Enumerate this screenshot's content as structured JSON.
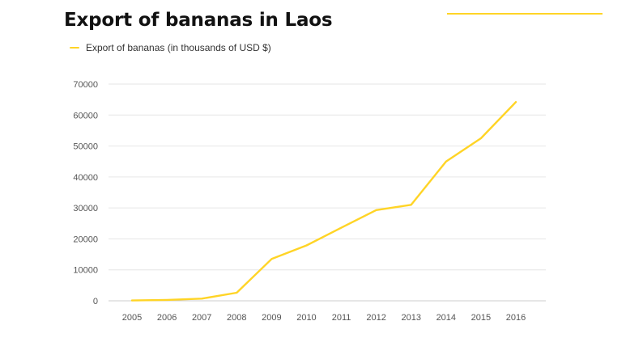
{
  "chart_data": {
    "type": "line",
    "title": "Export of bananas in Laos",
    "xlabel": "",
    "ylabel": "",
    "x": [
      2005,
      2006,
      2007,
      2008,
      2009,
      2010,
      2011,
      2012,
      2013,
      2014,
      2015,
      2016
    ],
    "series": [
      {
        "name": "Export of bananas (in thousands of USD $)",
        "values": [
          100,
          300,
          700,
          2600,
          13500,
          17900,
          23600,
          29300,
          31000,
          45000,
          52500,
          64200
        ]
      }
    ],
    "ylim": [
      0,
      70000
    ],
    "yticks": [
      0,
      10000,
      20000,
      30000,
      40000,
      50000,
      60000,
      70000
    ],
    "grid": "horizontal",
    "legend": "top-left"
  },
  "colors": {
    "series": "#FFD426",
    "grid": "#E6E6E6",
    "axis_text": "#555555",
    "title": "#111111"
  }
}
